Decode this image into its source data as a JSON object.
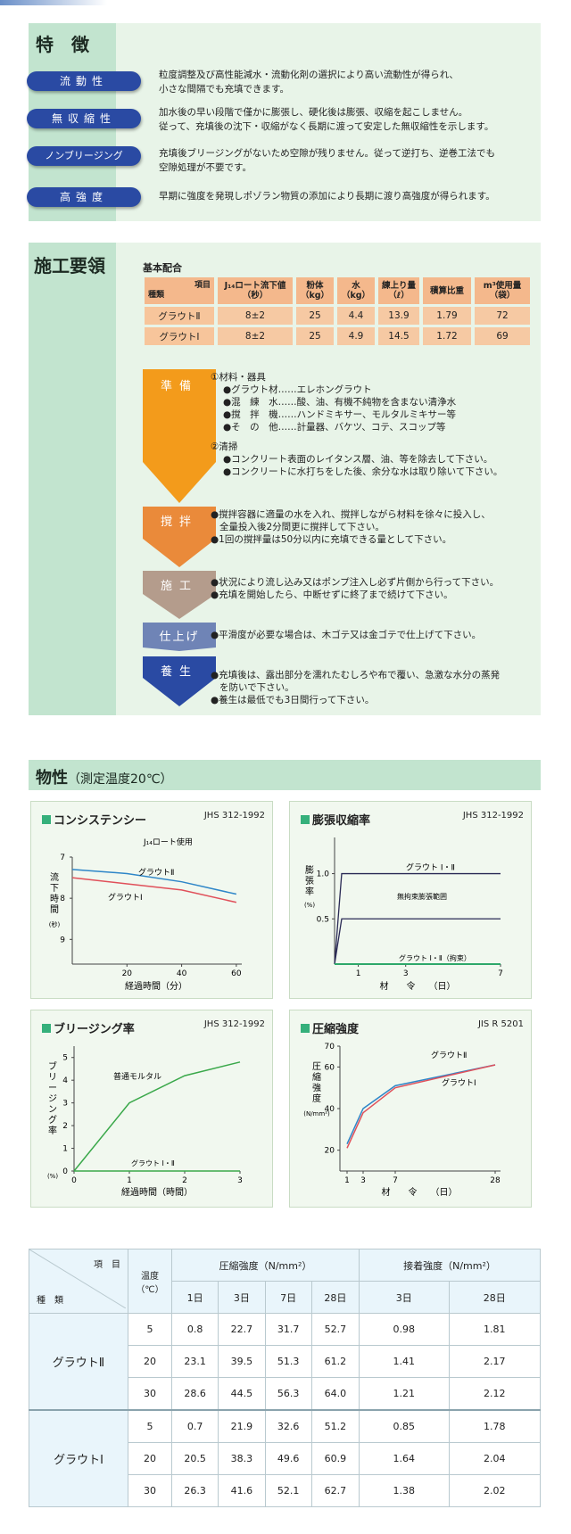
{
  "features": {
    "title": "特　徴",
    "items": [
      {
        "label": "流動性",
        "lines": [
          "粒度調整及び高性能減水・流動化剤の選択により高い流動性が得られ、",
          "小さな間隔でも充填できます。"
        ]
      },
      {
        "label": "無収縮性",
        "lines": [
          "加水後の早い段階で僅かに膨張し、硬化後は膨張、収縮を起こしません。",
          "従って、充填後の沈下・収縮がなく長期に渡って安定した無収縮性を示します。"
        ]
      },
      {
        "label": "ノンブリージング",
        "lines": [
          "充填後ブリージングがないため空隙が残りません。従って逆打ち、逆巻工法でも",
          "空隙処理が不要です。"
        ]
      },
      {
        "label": "高強度",
        "lines": [
          "早期に強度を発現しポゾラン物質の添加により長期に渡り高強度が得られます。"
        ]
      }
    ]
  },
  "construction": {
    "title": "施工要領",
    "mix_caption": "基本配合",
    "mix_header": {
      "item": "項目",
      "kind": "種類",
      "cols": [
        "J₁₄ロート流下値（秒）",
        "粉体（kg）",
        "水（kg）",
        "練上り量（ℓ）",
        "積算比重",
        "m³使用量（袋）"
      ]
    },
    "mix_rows": [
      {
        "name": "グラウトⅡ",
        "values": [
          "8±2",
          "25",
          "4.4",
          "13.9",
          "1.79",
          "72"
        ]
      },
      {
        "name": "グラウトⅠ",
        "values": [
          "8±2",
          "25",
          "4.9",
          "14.5",
          "1.72",
          "69"
        ]
      }
    ],
    "steps": [
      {
        "label": "準備",
        "color": "#f39b1b",
        "lines": [
          "①材料・器具",
          "●グラウト材……エレホングラウト",
          "●混　練　水……酸、油、有機不純物を含まない清浄水",
          "●撹　拌　機……ハンドミキサー、モルタルミキサー等",
          "●そ　の　他……計量器、バケツ、コテ、スコップ等",
          "②清掃",
          "●コンクリート表面のレイタンス層、油、等を除去して下さい。",
          "●コンクリートに水打ちをした後、余分な水は取り除いて下さい。"
        ]
      },
      {
        "label": "撹拌",
        "color": "#ea8a3a",
        "lines": [
          "●撹拌容器に適量の水を入れ、撹拌しながら材料を徐々に投入し、",
          "全量投入後2分間更に撹拌して下さい。",
          "●1回の撹拌量は50分以内に充填できる量として下さい。"
        ]
      },
      {
        "label": "施工",
        "color": "#b49c8c",
        "lines": [
          "●状況により流し込み又はポンプ注入し必ず片側から行って下さい。",
          "●充填を開始したら、中断せずに終了まで続けて下さい。"
        ]
      },
      {
        "label": "仕上げ",
        "color": "#6f84b6",
        "lines": [
          "●平滑度が必要な場合は、木ゴテ又は金ゴテで仕上げて下さい。"
        ]
      },
      {
        "label": "養生",
        "color": "#2a4aa3",
        "lines": [
          "●充填後は、露出部分を濡れたむしろや布で覆い、急激な水分の蒸発",
          "を防いで下さい。",
          "●養生は最低でも3日間行って下さい。"
        ]
      }
    ]
  },
  "properties": {
    "title": "物性",
    "title_note": "（測定温度20℃）"
  },
  "chart_data": [
    {
      "type": "line",
      "title": "コンシステンシー",
      "note": "J₁₄ロート使用",
      "standard": "JHS 312-1992",
      "xlabel": "経過時間（分）",
      "ylabel": "流下時間（秒）",
      "x": [
        0,
        20,
        40,
        60
      ],
      "xticks": [
        "20",
        "40",
        "60"
      ],
      "yticks": [
        "7",
        "8",
        "9"
      ],
      "ylim": [
        7,
        9.6
      ],
      "yreversed": true,
      "series": [
        {
          "name": "グラウトⅡ",
          "values": [
            7.3,
            7.4,
            7.6,
            7.9
          ],
          "color": "#2e86c8"
        },
        {
          "name": "グラウトⅠ",
          "values": [
            7.5,
            7.65,
            7.8,
            8.1
          ],
          "color": "#e0505a"
        }
      ]
    },
    {
      "type": "line",
      "title": "膨張収縮率",
      "standard": "JHS 312-1992",
      "xlabel": "材　　令　　（日）",
      "ylabel": "膨張率（%）",
      "xticks": [
        "1",
        "3",
        "7"
      ],
      "yticks": [
        "1.0",
        "0.5"
      ],
      "series": [
        {
          "name": "グラウト Ⅰ・Ⅱ",
          "x": [
            0,
            0.3,
            7
          ],
          "values": [
            0,
            1.0,
            1.0
          ],
          "color": "#2a2a55"
        },
        {
          "name": "無拘束膨張範囲",
          "x": [
            0,
            0.3,
            7
          ],
          "values": [
            0,
            0.5,
            0.5
          ],
          "color": "#2a2a55"
        },
        {
          "name": "グラウト Ⅰ・Ⅱ（拘束）",
          "x": [
            0,
            7
          ],
          "values": [
            0,
            0
          ],
          "color": "#2ea86a"
        }
      ]
    },
    {
      "type": "line",
      "title": "ブリージング率",
      "standard": "JHS 312-1992",
      "xlabel": "経過時間（時間）",
      "ylabel": "ブリージング率（%）",
      "xticks": [
        "0",
        "1",
        "2",
        "3"
      ],
      "yticks": [
        "0",
        "1",
        "2",
        "3",
        "4",
        "5"
      ],
      "ylim": [
        0,
        5.5
      ],
      "series": [
        {
          "name": "普通モルタル",
          "x": [
            0,
            1,
            2,
            3
          ],
          "values": [
            0,
            3.0,
            4.2,
            4.8
          ],
          "color": "#3aa84a"
        },
        {
          "name": "グラウト Ⅰ・Ⅱ",
          "x": [
            0,
            3
          ],
          "values": [
            0,
            0
          ],
          "color": "#3aa84a"
        }
      ]
    },
    {
      "type": "line",
      "title": "圧縮強度",
      "standard": "JIS R 5201",
      "xlabel": "材　　令　　（日）",
      "ylabel": "圧縮強度（N/mm²）",
      "xticks": [
        "1",
        "3",
        "7",
        "28"
      ],
      "yticks": [
        "20",
        "40",
        "60",
        "70"
      ],
      "ylim": [
        10,
        70
      ],
      "series": [
        {
          "name": "グラウトⅡ",
          "x": [
            1,
            3,
            7,
            28
          ],
          "values": [
            23,
            40,
            51,
            61
          ],
          "color": "#2e86c8"
        },
        {
          "name": "グラウトⅠ",
          "x": [
            1,
            3,
            7,
            28
          ],
          "values": [
            21,
            38,
            50,
            61
          ],
          "color": "#e0505a"
        }
      ]
    }
  ],
  "strength_table": {
    "item": "項　目",
    "kind": "種　類",
    "temp": "温度（℃）",
    "group_compressive": "圧縮強度（N/mm²）",
    "group_bond": "接着強度（N/mm²）",
    "cols": [
      "1日",
      "3日",
      "7日",
      "28日",
      "3日",
      "28日"
    ],
    "rows": [
      {
        "name": "グラウトⅡ",
        "data": [
          [
            "5",
            "0.8",
            "22.7",
            "31.7",
            "52.7",
            "0.98",
            "1.81"
          ],
          [
            "20",
            "23.1",
            "39.5",
            "51.3",
            "61.2",
            "1.41",
            "2.17"
          ],
          [
            "30",
            "28.6",
            "44.5",
            "56.3",
            "64.0",
            "1.21",
            "2.12"
          ]
        ]
      },
      {
        "name": "グラウトⅠ",
        "data": [
          [
            "5",
            "0.7",
            "21.9",
            "32.6",
            "51.2",
            "0.85",
            "1.78"
          ],
          [
            "20",
            "20.5",
            "38.3",
            "49.6",
            "60.9",
            "1.64",
            "2.04"
          ],
          [
            "30",
            "26.3",
            "41.6",
            "52.1",
            "62.7",
            "1.38",
            "2.02"
          ]
        ]
      }
    ]
  }
}
